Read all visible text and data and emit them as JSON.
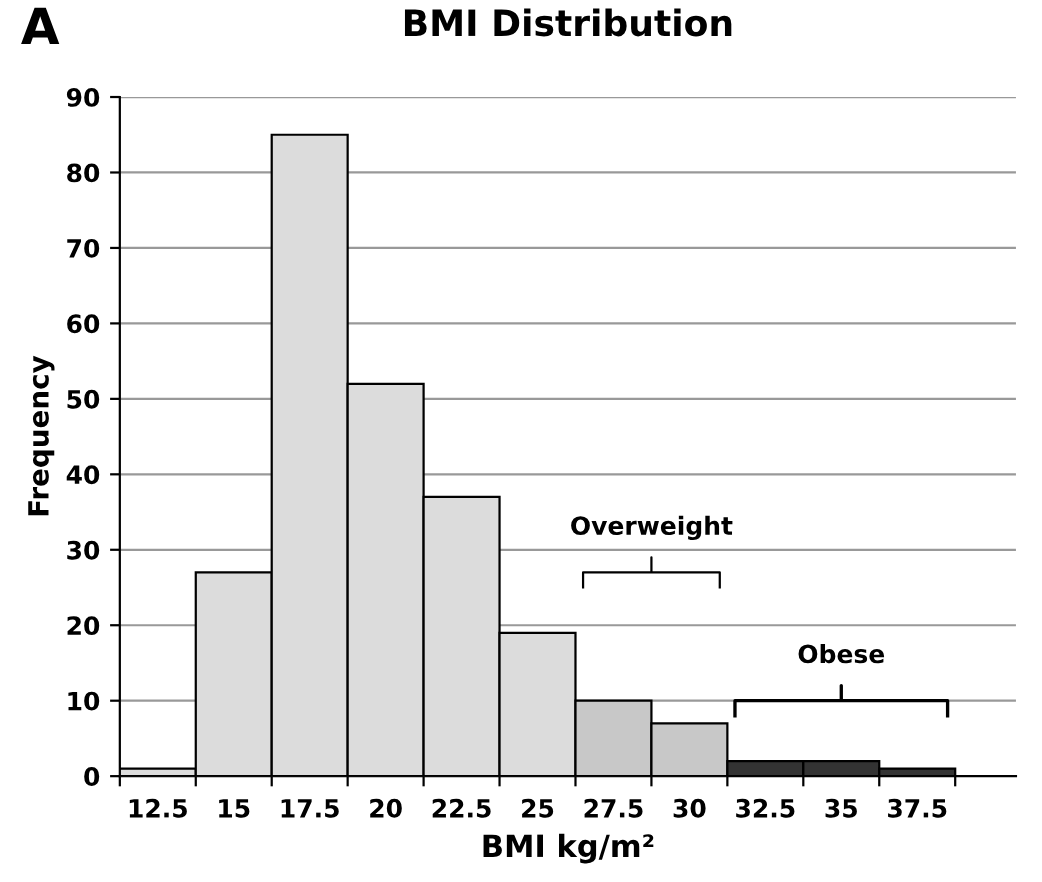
{
  "chart_data": {
    "type": "bar",
    "title": "BMI Distribution",
    "xlabel": "BMI kg/m²",
    "ylabel": "Frequency",
    "categories": [
      "12.5",
      "15",
      "17.5",
      "20",
      "22.5",
      "25",
      "27.5",
      "30",
      "32.5",
      "35",
      "37.5"
    ],
    "values": [
      1,
      27,
      85,
      52,
      37,
      19,
      10,
      7,
      2,
      2,
      1
    ],
    "colors": [
      "#dcdcdc",
      "#dcdcdc",
      "#dcdcdc",
      "#dcdcdc",
      "#dcdcdc",
      "#dcdcdc",
      "#c8c8c8",
      "#c8c8c8",
      "#333333",
      "#333333",
      "#333333"
    ],
    "ylim": [
      0,
      90
    ],
    "yticks": [
      0,
      10,
      20,
      30,
      40,
      50,
      60,
      70,
      80,
      90
    ],
    "grid": "y",
    "legend": false,
    "annotations": [
      "A",
      "Overweight",
      "Obese"
    ]
  }
}
